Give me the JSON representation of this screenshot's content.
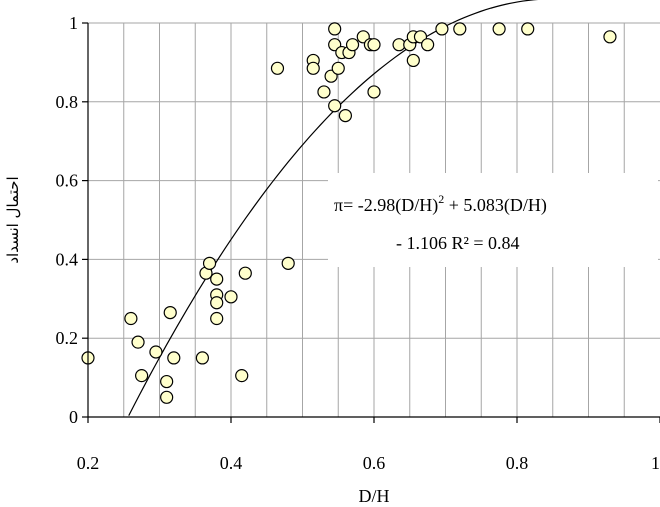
{
  "chart_data": {
    "type": "scatter",
    "xlabel": "D/H",
    "ylabel": "احتمال انسداد",
    "xlim": [
      0.2,
      1.0
    ],
    "ylim": [
      0,
      1
    ],
    "xticks": [
      0.2,
      0.4,
      0.6,
      0.8,
      1
    ],
    "xtick_labels": [
      "0.2",
      "0.4",
      "0.6",
      "0.8",
      "1"
    ],
    "yticks": [
      0,
      0.2,
      0.4,
      0.6,
      0.8,
      1
    ],
    "ytick_labels": [
      "0",
      "0.2",
      "0.4",
      "0.6",
      "0.8",
      "1"
    ],
    "grid": true,
    "marker_color": "#ffffcc",
    "points": [
      {
        "x": 0.2,
        "y": 0.15
      },
      {
        "x": 0.26,
        "y": 0.25
      },
      {
        "x": 0.27,
        "y": 0.19
      },
      {
        "x": 0.275,
        "y": 0.105
      },
      {
        "x": 0.295,
        "y": 0.165
      },
      {
        "x": 0.31,
        "y": 0.09
      },
      {
        "x": 0.31,
        "y": 0.05
      },
      {
        "x": 0.315,
        "y": 0.265
      },
      {
        "x": 0.32,
        "y": 0.15
      },
      {
        "x": 0.36,
        "y": 0.15
      },
      {
        "x": 0.365,
        "y": 0.365
      },
      {
        "x": 0.37,
        "y": 0.39
      },
      {
        "x": 0.38,
        "y": 0.35
      },
      {
        "x": 0.38,
        "y": 0.31
      },
      {
        "x": 0.38,
        "y": 0.29
      },
      {
        "x": 0.38,
        "y": 0.25
      },
      {
        "x": 0.4,
        "y": 0.305
      },
      {
        "x": 0.415,
        "y": 0.105
      },
      {
        "x": 0.42,
        "y": 0.365
      },
      {
        "x": 0.465,
        "y": 0.885
      },
      {
        "x": 0.48,
        "y": 0.39
      },
      {
        "x": 0.515,
        "y": 0.905
      },
      {
        "x": 0.515,
        "y": 0.885
      },
      {
        "x": 0.53,
        "y": 0.825
      },
      {
        "x": 0.54,
        "y": 0.865
      },
      {
        "x": 0.545,
        "y": 0.79
      },
      {
        "x": 0.545,
        "y": 0.945
      },
      {
        "x": 0.545,
        "y": 0.985
      },
      {
        "x": 0.55,
        "y": 0.885
      },
      {
        "x": 0.555,
        "y": 0.925
      },
      {
        "x": 0.56,
        "y": 0.765
      },
      {
        "x": 0.565,
        "y": 0.925
      },
      {
        "x": 0.57,
        "y": 0.945
      },
      {
        "x": 0.585,
        "y": 0.965
      },
      {
        "x": 0.595,
        "y": 0.945
      },
      {
        "x": 0.6,
        "y": 0.825
      },
      {
        "x": 0.6,
        "y": 0.945
      },
      {
        "x": 0.635,
        "y": 0.945
      },
      {
        "x": 0.65,
        "y": 0.945
      },
      {
        "x": 0.655,
        "y": 0.905
      },
      {
        "x": 0.655,
        "y": 0.965
      },
      {
        "x": 0.665,
        "y": 0.965
      },
      {
        "x": 0.675,
        "y": 0.945
      },
      {
        "x": 0.695,
        "y": 0.985
      },
      {
        "x": 0.72,
        "y": 0.985
      },
      {
        "x": 0.775,
        "y": 0.985
      },
      {
        "x": 0.815,
        "y": 0.985
      },
      {
        "x": 0.93,
        "y": 0.965
      }
    ],
    "trendline": {
      "a": -2.98,
      "b": 5.083,
      "c": -1.106,
      "x_from": 0.257,
      "x_to": 0.853
    },
    "annotation": {
      "line1_prefix": "π= -2.98(D/H)",
      "line1_sup": "2",
      "line1_suffix": " + 5.083(D/H)",
      "line2": "- 1.106    R² = 0.84"
    }
  }
}
